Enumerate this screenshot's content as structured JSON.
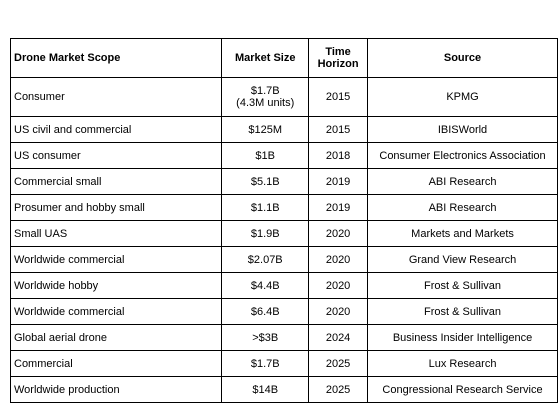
{
  "table": {
    "headers": {
      "scope": "Drone Market Scope",
      "size": "Market Size",
      "horizon": "Time Horizon",
      "source": "Source"
    },
    "rows": [
      {
        "scope": "Consumer",
        "size": "$1.7B",
        "size_note": "(4.3M units)",
        "horizon": "2015",
        "source": "KPMG"
      },
      {
        "scope": "US civil and commercial",
        "size": "$125M",
        "horizon": "2015",
        "source": "IBISWorld"
      },
      {
        "scope": "US consumer",
        "size": "$1B",
        "horizon": "2018",
        "source": "Consumer Electronics Association"
      },
      {
        "scope": "Commercial small",
        "size": "$5.1B",
        "horizon": "2019",
        "source": "ABI Research"
      },
      {
        "scope": "Prosumer and hobby small",
        "size": "$1.1B",
        "horizon": "2019",
        "source": "ABI Research"
      },
      {
        "scope": "Small UAS",
        "size": "$1.9B",
        "horizon": "2020",
        "source": "Markets and Markets"
      },
      {
        "scope": "Worldwide commercial",
        "size": "$2.07B",
        "horizon": "2020",
        "source": "Grand View Research"
      },
      {
        "scope": "Worldwide hobby",
        "size": "$4.4B",
        "horizon": "2020",
        "source": "Frost & Sullivan"
      },
      {
        "scope": "Worldwide commercial",
        "size": "$6.4B",
        "horizon": "2020",
        "source": "Frost & Sullivan"
      },
      {
        "scope": "Global aerial drone",
        "size": ">$3B",
        "horizon": "2024",
        "source": "Business Insider Intelligence"
      },
      {
        "scope": "Commercial",
        "size": "$1.7B",
        "horizon": "2025",
        "source": "Lux Research"
      },
      {
        "scope": "Worldwide production",
        "size": "$14B",
        "horizon": "2025",
        "source": "Congressional Research Service"
      }
    ]
  }
}
